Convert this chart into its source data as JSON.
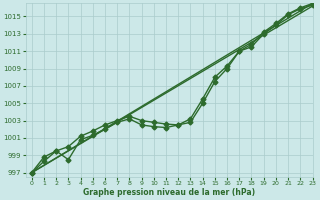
{
  "title": "Graphe pression niveau de la mer (hPa)",
  "bg_color": "#cce8e8",
  "grid_color": "#aacccc",
  "line_color": "#2d6b2d",
  "xlim": [
    -0.5,
    23
  ],
  "ylim": [
    996.5,
    1016.5
  ],
  "yticks": [
    997,
    999,
    1001,
    1003,
    1005,
    1007,
    1009,
    1011,
    1013,
    1015
  ],
  "xticks": [
    0,
    1,
    2,
    3,
    4,
    5,
    6,
    7,
    8,
    9,
    10,
    11,
    12,
    13,
    14,
    15,
    16,
    17,
    18,
    19,
    20,
    21,
    22,
    23
  ],
  "series": [
    {
      "x": [
        0,
        23
      ],
      "y": [
        997.0,
        1016.2
      ],
      "marker": null,
      "markersize": 0,
      "linewidth": 1.0
    },
    {
      "x": [
        0,
        23
      ],
      "y": [
        997.0,
        1016.5
      ],
      "marker": null,
      "markersize": 0,
      "linewidth": 1.0
    },
    {
      "x": [
        0,
        1,
        2,
        3,
        4,
        5,
        6,
        7,
        8,
        9,
        10,
        11,
        12,
        13,
        14,
        15,
        16,
        17,
        18,
        19,
        20,
        21,
        22,
        23
      ],
      "y": [
        997.0,
        998.3,
        999.5,
        998.5,
        1000.8,
        1001.3,
        1002.0,
        1002.8,
        1003.2,
        1002.5,
        1002.3,
        1002.2,
        1002.5,
        1002.8,
        1005.0,
        1007.5,
        1009.0,
        1011.0,
        1011.5,
        1013.0,
        1014.0,
        1015.2,
        1015.9,
        1016.3
      ],
      "marker": "D",
      "markersize": 2.5,
      "linewidth": 1.0
    },
    {
      "x": [
        0,
        1,
        2,
        3,
        4,
        5,
        6,
        7,
        8,
        9,
        10,
        11,
        12,
        13,
        14,
        15,
        16,
        17,
        18,
        19,
        20,
        21,
        22,
        23
      ],
      "y": [
        997.0,
        998.8,
        999.5,
        1000.0,
        1001.2,
        1001.8,
        1002.5,
        1003.0,
        1003.5,
        1003.0,
        1002.8,
        1002.6,
        1002.5,
        1003.2,
        1005.5,
        1008.0,
        1009.3,
        1011.0,
        1011.8,
        1013.2,
        1014.2,
        1015.3,
        1016.0,
        1016.5
      ],
      "marker": "D",
      "markersize": 2.5,
      "linewidth": 1.0
    }
  ]
}
